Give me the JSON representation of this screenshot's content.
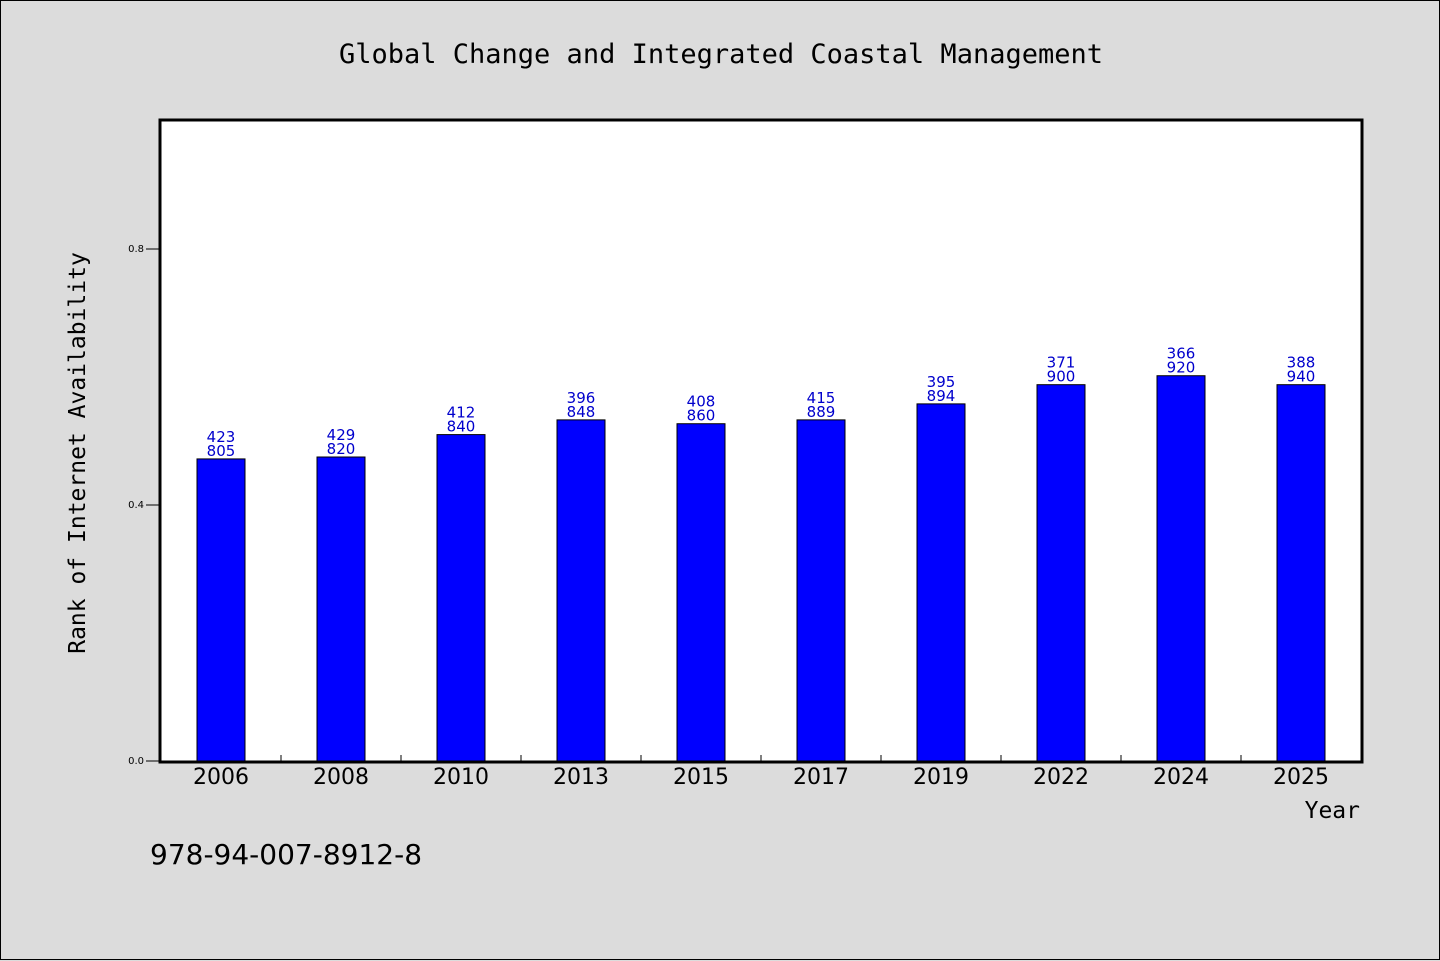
{
  "chart_data": {
    "type": "bar",
    "title": "Global Change and Integrated Coastal Management",
    "xlabel": "Year",
    "ylabel": "Rank of Internet Availability",
    "ylim": [
      0,
      1.0
    ],
    "yticks": [
      "0.0",
      "0.4",
      "0.8"
    ],
    "grid": false,
    "categories": [
      "2006",
      "2008",
      "2010",
      "2013",
      "2015",
      "2017",
      "2019",
      "2022",
      "2024",
      "2025"
    ],
    "values": [
      0.472,
      0.475,
      0.51,
      0.533,
      0.527,
      0.533,
      0.558,
      0.588,
      0.602,
      0.588
    ],
    "bar_color": "#0000ff",
    "label_color": "#0000cc",
    "labels_top": [
      "423",
      "429",
      "412",
      "396",
      "408",
      "415",
      "395",
      "371",
      "366",
      "388"
    ],
    "labels_bottom": [
      "805",
      "820",
      "840",
      "848",
      "860",
      "889",
      "894",
      "900",
      "920",
      "940"
    ]
  },
  "note": "978-94-007-8912-8"
}
